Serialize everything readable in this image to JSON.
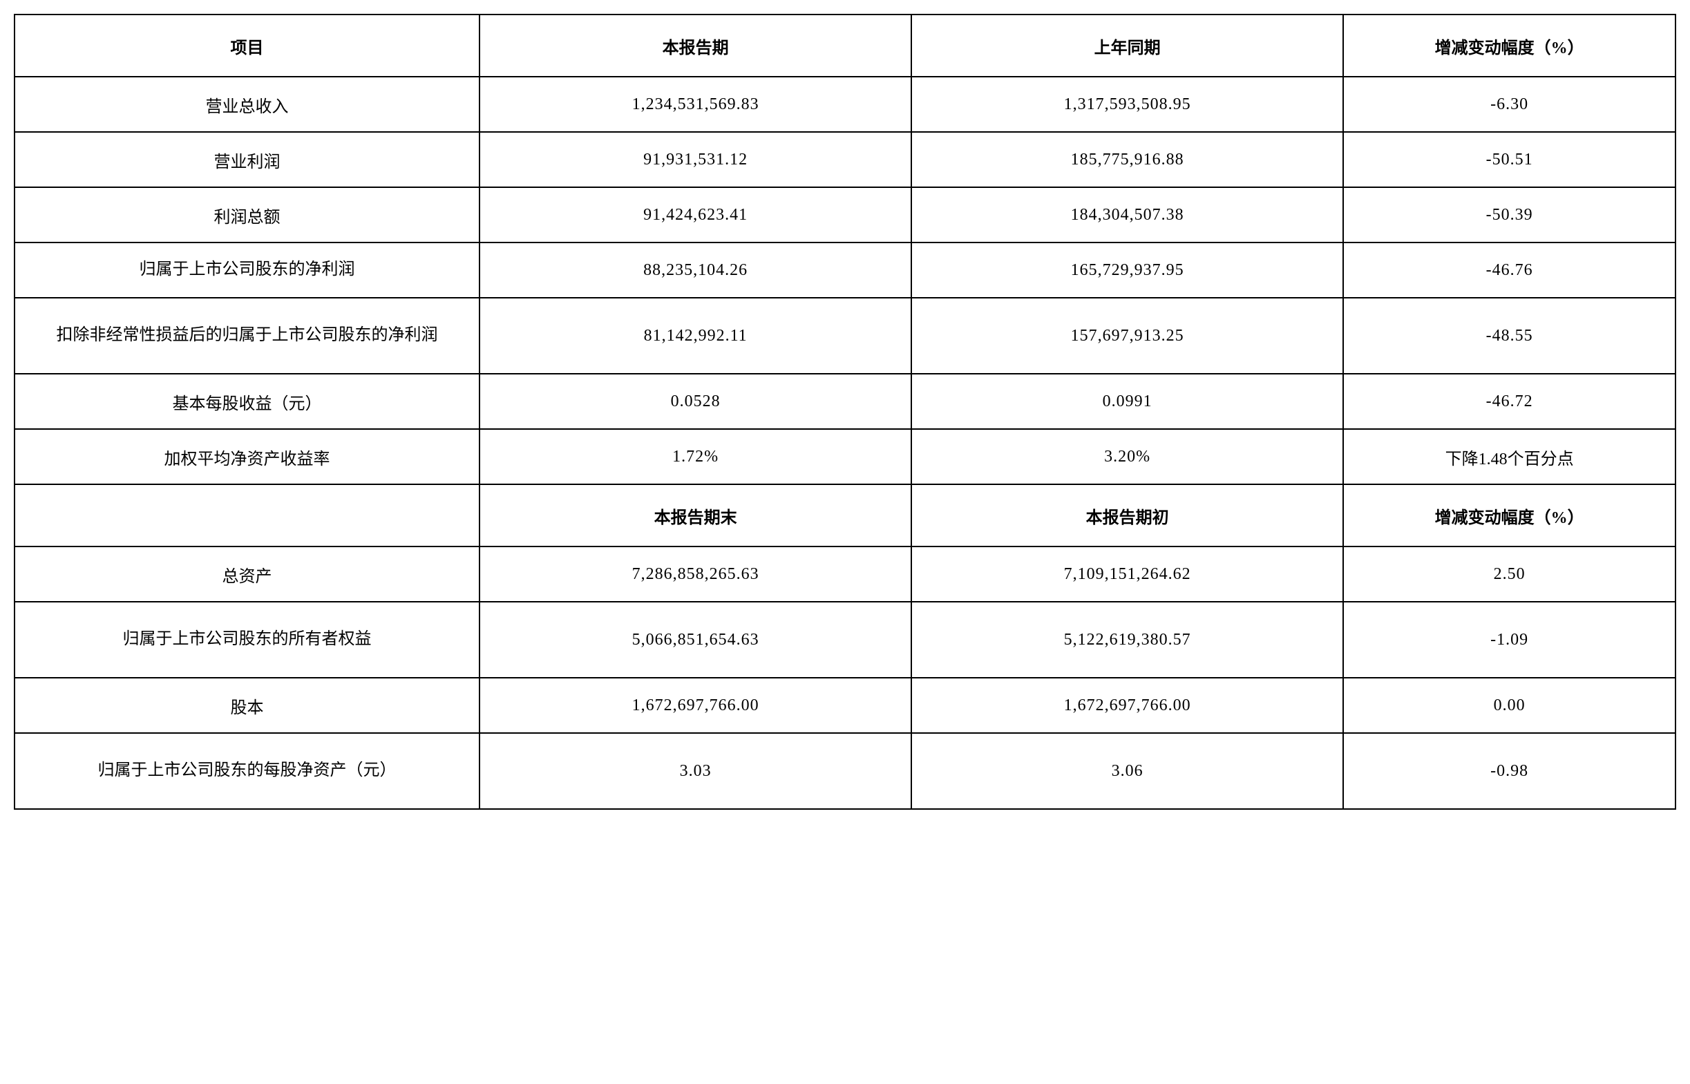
{
  "table": {
    "type": "table",
    "border_color": "#000000",
    "background_color": "#ffffff",
    "text_color": "#000000",
    "font_family": "SimSun",
    "header_fontsize": 24,
    "body_fontsize": 24,
    "border_width": 2,
    "columns_width_pct": [
      28,
      26,
      26,
      20
    ],
    "header1": {
      "c1": "项目",
      "c2": "本报告期",
      "c3": "上年同期",
      "c4": "增减变动幅度（%）"
    },
    "rows1": [
      {
        "label": "营业总收入",
        "curr": "1,234,531,569.83",
        "prev": "1,317,593,508.95",
        "delta": "-6.30"
      },
      {
        "label": "营业利润",
        "curr": "91,931,531.12",
        "prev": "185,775,916.88",
        "delta": "-50.51"
      },
      {
        "label": "利润总额",
        "curr": "91,424,623.41",
        "prev": "184,304,507.38",
        "delta": "-50.39"
      },
      {
        "label": "归属于上市公司股东的净利润",
        "curr": "88,235,104.26",
        "prev": "165,729,937.95",
        "delta": "-46.76"
      },
      {
        "label": "扣除非经常性损益后的归属于上市公司股东的净利润",
        "curr": "81,142,992.11",
        "prev": "157,697,913.25",
        "delta": "-48.55"
      },
      {
        "label": "基本每股收益（元）",
        "curr": "0.0528",
        "prev": "0.0991",
        "delta": "-46.72"
      },
      {
        "label": "加权平均净资产收益率",
        "curr": "1.72%",
        "prev": "3.20%",
        "delta": "下降1.48个百分点"
      }
    ],
    "header2": {
      "c1": "",
      "c2": "本报告期末",
      "c3": "本报告期初",
      "c4": "增减变动幅度（%）"
    },
    "rows2": [
      {
        "label": "总资产",
        "curr": "7,286,858,265.63",
        "prev": "7,109,151,264.62",
        "delta": "2.50"
      },
      {
        "label": "归属于上市公司股东的所有者权益",
        "curr": "5,066,851,654.63",
        "prev": "5,122,619,380.57",
        "delta": "-1.09"
      },
      {
        "label": "股本",
        "curr": "1,672,697,766.00",
        "prev": "1,672,697,766.00",
        "delta": "0.00"
      },
      {
        "label": "归属于上市公司股东的每股净资产（元）",
        "curr": "3.03",
        "prev": "3.06",
        "delta": "-0.98"
      }
    ]
  }
}
